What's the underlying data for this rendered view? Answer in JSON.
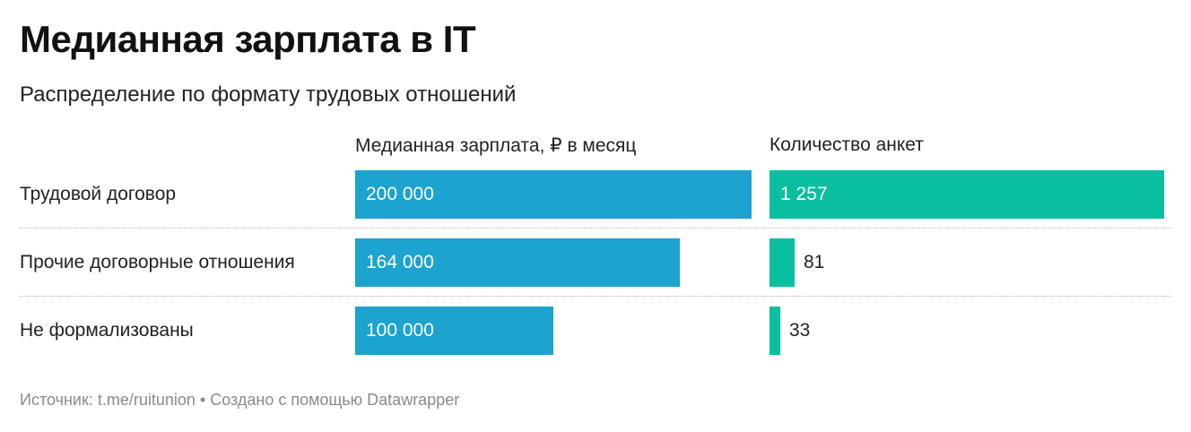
{
  "title": "Медианная зарплата в IT",
  "subtitle": "Распределение по формату трудовых отношений",
  "footer": "Источник: t.me/ruitunion • Создано с помощью Datawrapper",
  "chart_data": {
    "type": "bar",
    "orientation": "horizontal",
    "categories": [
      "Трудовой договор",
      "Прочие договорные отношения",
      "Не формализованы"
    ],
    "series": [
      {
        "name": "Медианная зарплата, ₽ в месяц",
        "values": [
          200000,
          164000,
          100000
        ],
        "labels": [
          "200 000",
          "164 000",
          "100 000"
        ],
        "color": "#1ca3cf"
      },
      {
        "name": "Количество анкет",
        "values": [
          1257,
          81,
          33
        ],
        "labels": [
          "1 257",
          "81",
          "33"
        ],
        "color": "#0abf9f"
      }
    ],
    "grid": false,
    "legend": "column-headers"
  }
}
